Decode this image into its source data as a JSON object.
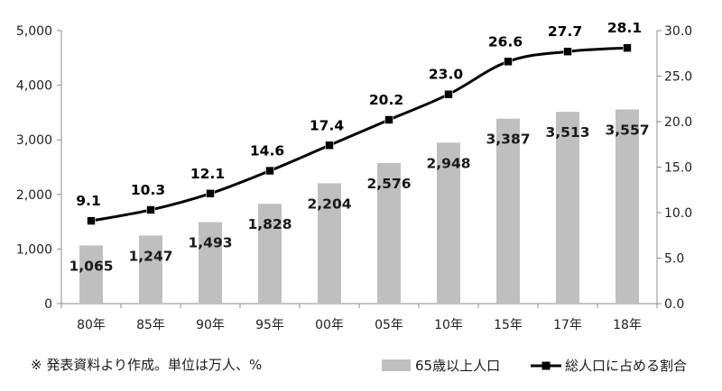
{
  "chart_data": {
    "type": "bar+line",
    "categories": [
      "80年",
      "85年",
      "90年",
      "95年",
      "00年",
      "05年",
      "10年",
      "15年",
      "17年",
      "18年"
    ],
    "series": [
      {
        "name": "65歳以上人口",
        "type": "bar",
        "axis": "left",
        "values": [
          1065,
          1247,
          1493,
          1828,
          2204,
          2576,
          2948,
          3387,
          3513,
          3557
        ],
        "labels": [
          "1,065",
          "1,247",
          "1,493",
          "1,828",
          "2,204",
          "2,576",
          "2,948",
          "3,387",
          "3,513",
          "3,557"
        ],
        "color": "#bfbfbf"
      },
      {
        "name": "総人口に占める割合",
        "type": "line",
        "axis": "right",
        "values": [
          9.1,
          10.3,
          12.1,
          14.6,
          17.4,
          20.2,
          23.0,
          26.6,
          27.7,
          28.1
        ],
        "labels": [
          "9.1",
          "10.3",
          "12.1",
          "14.6",
          "17.4",
          "20.2",
          "23.0",
          "26.6",
          "27.7",
          "28.1"
        ],
        "color": "#000000"
      }
    ],
    "ylim_left": [
      0,
      5000
    ],
    "ylim_right": [
      0,
      30
    ],
    "yticks_left": [
      0,
      1000,
      2000,
      3000,
      4000,
      5000
    ],
    "yticks_left_labels": [
      "0",
      "1,000",
      "2,000",
      "3,000",
      "4,000",
      "5,000"
    ],
    "yticks_right": [
      0,
      5,
      10,
      15,
      20,
      25,
      30
    ],
    "yticks_right_labels": [
      "0.0",
      "5.0",
      "10.0",
      "15.0",
      "20.0",
      "25.0",
      "30.0"
    ],
    "grid": false,
    "legend_position": "bottom-right"
  },
  "footnote": "※  発表資料より作成。単位は万人、%"
}
